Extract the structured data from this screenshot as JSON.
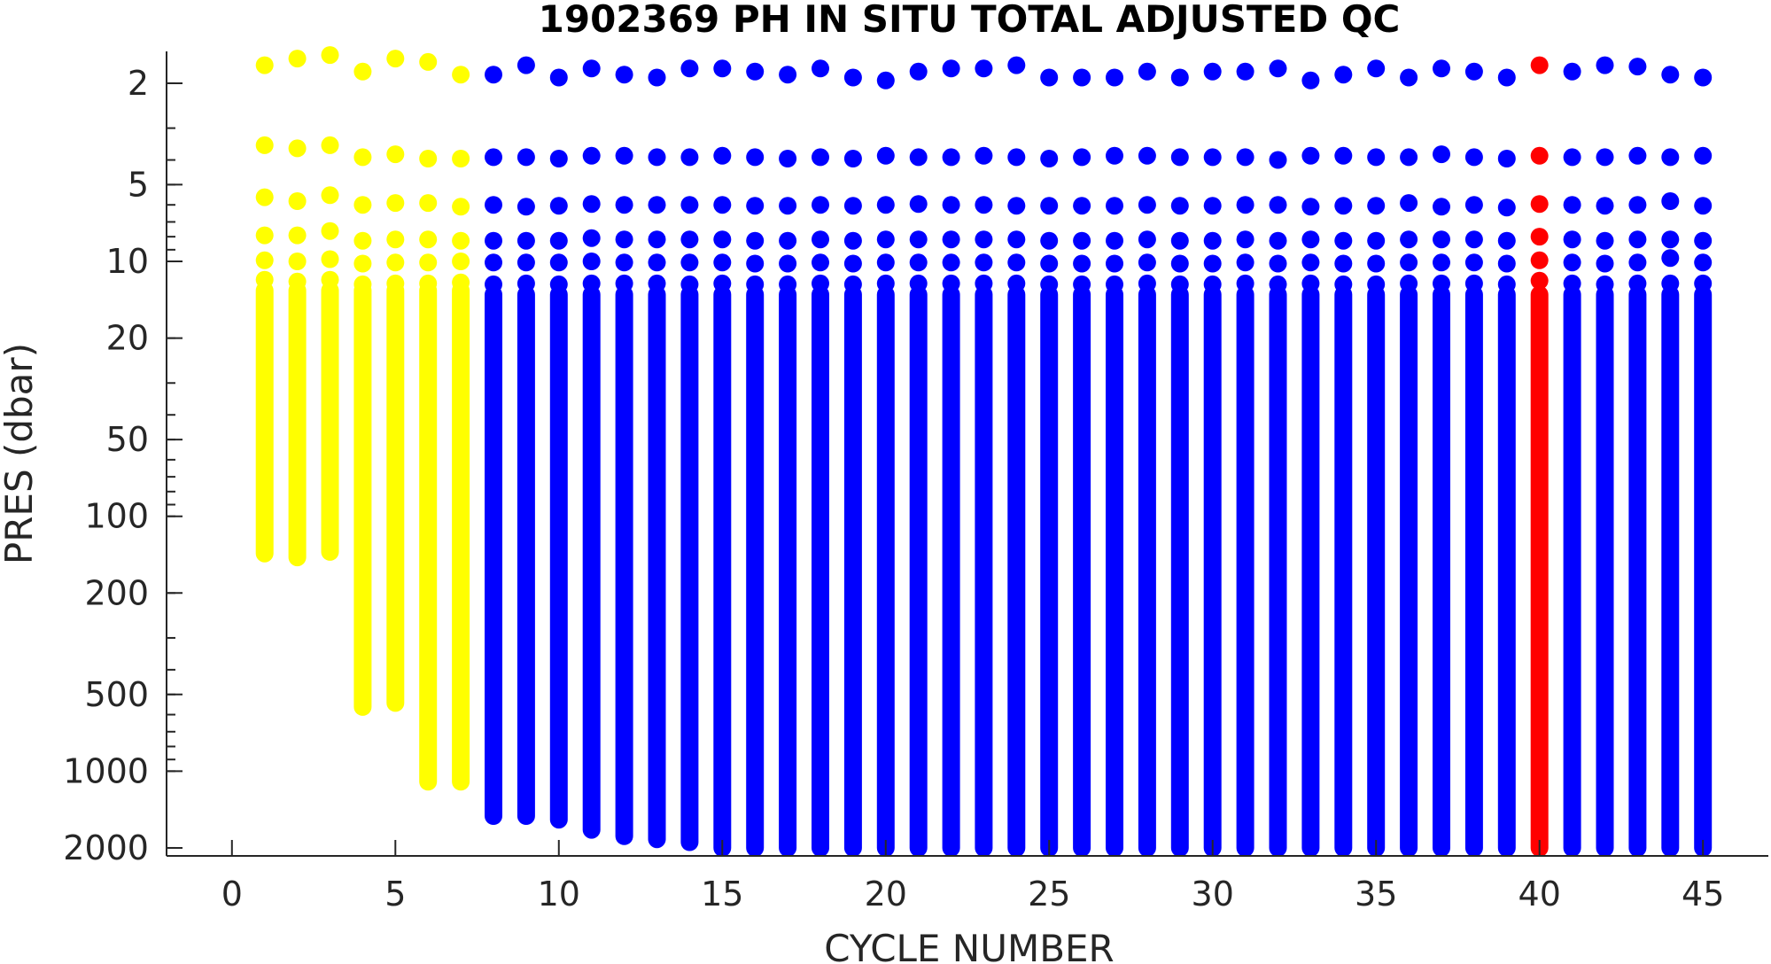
{
  "chart_data": {
    "type": "scatter",
    "title": "1902369  PH IN SITU TOTAL ADJUSTED QC",
    "xlabel": "CYCLE NUMBER",
    "ylabel": "PRES (dbar)",
    "xlim": [
      -2,
      47
    ],
    "ylim": [
      1.5,
      2150
    ],
    "y_scale": "log",
    "y_reversed": true,
    "x_ticks": [
      0,
      5,
      10,
      15,
      20,
      25,
      30,
      35,
      40,
      45
    ],
    "y_ticks": [
      2,
      5,
      10,
      20,
      50,
      100,
      200,
      500,
      1000,
      2000
    ],
    "grid": false,
    "colors": {
      "yellow": "#ffff00",
      "blue": "#0000ff",
      "red": "#ff0000"
    },
    "profiles": [
      {
        "cycle": 1,
        "color": "yellow",
        "top": [
          1.7,
          3.5,
          5.6,
          7.9,
          9.9,
          11.8
        ],
        "continuous_from": 13,
        "max_pres": 140
      },
      {
        "cycle": 2,
        "color": "yellow",
        "top": [
          1.6,
          3.6,
          5.8,
          7.9,
          10.0,
          12.0
        ],
        "continuous_from": 13,
        "max_pres": 145
      },
      {
        "cycle": 3,
        "color": "yellow",
        "top": [
          1.55,
          3.5,
          5.5,
          7.6,
          9.8,
          11.8
        ],
        "continuous_from": 13,
        "max_pres": 138
      },
      {
        "cycle": 4,
        "color": "yellow",
        "top": [
          1.8,
          3.9,
          6.0,
          8.3,
          10.2,
          12.3
        ],
        "continuous_from": 13,
        "max_pres": 560
      },
      {
        "cycle": 5,
        "color": "yellow",
        "top": [
          1.6,
          3.8,
          5.9,
          8.2,
          10.1,
          12.2
        ],
        "continuous_from": 13,
        "max_pres": 540
      },
      {
        "cycle": 6,
        "color": "yellow",
        "top": [
          1.65,
          3.95,
          5.9,
          8.2,
          10.1,
          12.2
        ],
        "continuous_from": 13,
        "max_pres": 1100
      },
      {
        "cycle": 7,
        "color": "yellow",
        "top": [
          1.85,
          3.95,
          6.1,
          8.3,
          10.0,
          12.1
        ],
        "continuous_from": 13,
        "max_pres": 1100
      },
      {
        "cycle": 8,
        "color": "blue",
        "top": [
          1.85,
          3.9,
          6.0,
          8.3,
          10.1,
          12.3
        ],
        "continuous_from": 13.5,
        "max_pres": 1500
      },
      {
        "cycle": 9,
        "color": "blue",
        "top": [
          1.7,
          3.9,
          6.1,
          8.3,
          10.1,
          12.2
        ],
        "continuous_from": 13.5,
        "max_pres": 1500
      },
      {
        "cycle": 10,
        "color": "blue",
        "top": [
          1.9,
          3.95,
          6.05,
          8.3,
          10.1,
          12.3
        ],
        "continuous_from": 13.5,
        "max_pres": 1550
      },
      {
        "cycle": 11,
        "color": "blue",
        "top": [
          1.75,
          3.85,
          5.95,
          8.1,
          10.0,
          12.2
        ],
        "continuous_from": 13.5,
        "max_pres": 1700
      },
      {
        "cycle": 12,
        "color": "blue",
        "top": [
          1.85,
          3.85,
          6.0,
          8.2,
          10.1,
          12.2
        ],
        "continuous_from": 13.5,
        "max_pres": 1800
      },
      {
        "cycle": 13,
        "color": "blue",
        "top": [
          1.9,
          3.9,
          6.0,
          8.2,
          10.1,
          12.2
        ],
        "continuous_from": 13.5,
        "max_pres": 1850
      },
      {
        "cycle": 14,
        "color": "blue",
        "top": [
          1.75,
          3.9,
          6.0,
          8.2,
          10.1,
          12.3
        ],
        "continuous_from": 13.5,
        "max_pres": 1900
      },
      {
        "cycle": 15,
        "color": "blue",
        "top": [
          1.75,
          3.85,
          6.0,
          8.2,
          10.1,
          12.2
        ],
        "continuous_from": 13.5,
        "max_pres": 2000
      },
      {
        "cycle": 16,
        "color": "blue",
        "top": [
          1.8,
          3.9,
          6.05,
          8.3,
          10.2,
          12.3
        ],
        "continuous_from": 13.5,
        "max_pres": 2000
      },
      {
        "cycle": 17,
        "color": "blue",
        "top": [
          1.85,
          3.95,
          6.05,
          8.3,
          10.2,
          12.3
        ],
        "continuous_from": 13.5,
        "max_pres": 2000
      },
      {
        "cycle": 18,
        "color": "blue",
        "top": [
          1.75,
          3.9,
          6.0,
          8.2,
          10.1,
          12.2
        ],
        "continuous_from": 13.5,
        "max_pres": 2000
      },
      {
        "cycle": 19,
        "color": "blue",
        "top": [
          1.9,
          3.95,
          6.05,
          8.3,
          10.2,
          12.3
        ],
        "continuous_from": 13.5,
        "max_pres": 2000
      },
      {
        "cycle": 20,
        "color": "blue",
        "top": [
          1.95,
          3.85,
          6.0,
          8.2,
          10.1,
          12.2
        ],
        "continuous_from": 13.5,
        "max_pres": 2000
      },
      {
        "cycle": 21,
        "color": "blue",
        "top": [
          1.8,
          3.9,
          5.95,
          8.2,
          10.1,
          12.2
        ],
        "continuous_from": 13.5,
        "max_pres": 2000
      },
      {
        "cycle": 22,
        "color": "blue",
        "top": [
          1.75,
          3.9,
          6.0,
          8.2,
          10.1,
          12.2
        ],
        "continuous_from": 13.5,
        "max_pres": 2000
      },
      {
        "cycle": 23,
        "color": "blue",
        "top": [
          1.75,
          3.85,
          6.0,
          8.2,
          10.1,
          12.2
        ],
        "continuous_from": 13.5,
        "max_pres": 2000
      },
      {
        "cycle": 24,
        "color": "blue",
        "top": [
          1.7,
          3.9,
          6.05,
          8.2,
          10.1,
          12.2
        ],
        "continuous_from": 13.5,
        "max_pres": 2000
      },
      {
        "cycle": 25,
        "color": "blue",
        "top": [
          1.9,
          3.95,
          6.05,
          8.3,
          10.2,
          12.3
        ],
        "continuous_from": 13.5,
        "max_pres": 2000
      },
      {
        "cycle": 26,
        "color": "blue",
        "top": [
          1.9,
          3.9,
          6.05,
          8.3,
          10.2,
          12.3
        ],
        "continuous_from": 13.5,
        "max_pres": 2000
      },
      {
        "cycle": 27,
        "color": "blue",
        "top": [
          1.9,
          3.85,
          6.05,
          8.3,
          10.2,
          12.3
        ],
        "continuous_from": 13.5,
        "max_pres": 2000
      },
      {
        "cycle": 28,
        "color": "blue",
        "top": [
          1.8,
          3.85,
          6.0,
          8.2,
          10.1,
          12.2
        ],
        "continuous_from": 13.5,
        "max_pres": 2000
      },
      {
        "cycle": 29,
        "color": "blue",
        "top": [
          1.9,
          3.9,
          6.05,
          8.3,
          10.2,
          12.3
        ],
        "continuous_from": 13.5,
        "max_pres": 2000
      },
      {
        "cycle": 30,
        "color": "blue",
        "top": [
          1.8,
          3.9,
          6.05,
          8.3,
          10.2,
          12.3
        ],
        "continuous_from": 13.5,
        "max_pres": 2000
      },
      {
        "cycle": 31,
        "color": "blue",
        "top": [
          1.8,
          3.9,
          6.0,
          8.2,
          10.1,
          12.2
        ],
        "continuous_from": 13.5,
        "max_pres": 2000
      },
      {
        "cycle": 32,
        "color": "blue",
        "top": [
          1.75,
          4.0,
          6.0,
          8.3,
          10.2,
          12.3
        ],
        "continuous_from": 13.5,
        "max_pres": 2000
      },
      {
        "cycle": 33,
        "color": "blue",
        "top": [
          1.95,
          3.85,
          6.1,
          8.2,
          10.1,
          12.2
        ],
        "continuous_from": 13.5,
        "max_pres": 2000
      },
      {
        "cycle": 34,
        "color": "blue",
        "top": [
          1.85,
          3.85,
          6.05,
          8.3,
          10.2,
          12.3
        ],
        "continuous_from": 13.5,
        "max_pres": 2000
      },
      {
        "cycle": 35,
        "color": "blue",
        "top": [
          1.75,
          3.9,
          6.05,
          8.3,
          10.2,
          12.3
        ],
        "continuous_from": 13.5,
        "max_pres": 2000
      },
      {
        "cycle": 36,
        "color": "blue",
        "top": [
          1.9,
          3.9,
          5.9,
          8.2,
          10.1,
          12.2
        ],
        "continuous_from": 13.5,
        "max_pres": 2000
      },
      {
        "cycle": 37,
        "color": "blue",
        "top": [
          1.75,
          3.8,
          6.1,
          8.2,
          10.1,
          12.2
        ],
        "continuous_from": 13.5,
        "max_pres": 2000
      },
      {
        "cycle": 38,
        "color": "blue",
        "top": [
          1.8,
          3.9,
          6.0,
          8.2,
          10.1,
          12.2
        ],
        "continuous_from": 13.5,
        "max_pres": 2000
      },
      {
        "cycle": 39,
        "color": "blue",
        "top": [
          1.9,
          3.95,
          6.15,
          8.3,
          10.2,
          12.3
        ],
        "continuous_from": 13.5,
        "max_pres": 2000
      },
      {
        "cycle": 40,
        "color": "red",
        "top": [
          1.7,
          3.85,
          5.95,
          8.0,
          9.9,
          11.9
        ],
        "continuous_from": 13.5,
        "max_pres": 2000
      },
      {
        "cycle": 41,
        "color": "blue",
        "top": [
          1.8,
          3.9,
          6.0,
          8.2,
          10.1,
          12.2
        ],
        "continuous_from": 13.5,
        "max_pres": 2000
      },
      {
        "cycle": 42,
        "color": "blue",
        "top": [
          1.7,
          3.9,
          6.05,
          8.3,
          10.2,
          12.3
        ],
        "continuous_from": 13.5,
        "max_pres": 2000
      },
      {
        "cycle": 43,
        "color": "blue",
        "top": [
          1.72,
          3.85,
          6.0,
          8.2,
          10.1,
          12.2
        ],
        "continuous_from": 13.5,
        "max_pres": 2000
      },
      {
        "cycle": 44,
        "color": "blue",
        "top": [
          1.85,
          3.9,
          5.8,
          8.2,
          9.7,
          12.2
        ],
        "continuous_from": 13.5,
        "max_pres": 2000
      },
      {
        "cycle": 45,
        "color": "blue",
        "top": [
          1.9,
          3.85,
          6.05,
          8.3,
          10.1,
          12.2
        ],
        "continuous_from": 13.5,
        "max_pres": 2000
      }
    ]
  }
}
